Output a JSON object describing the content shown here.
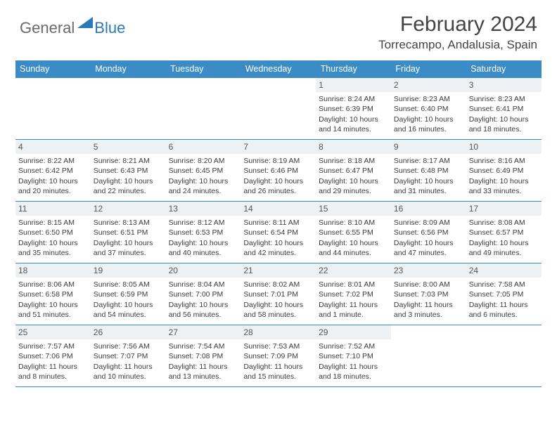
{
  "logo": {
    "general": "General",
    "blue": "Blue",
    "accent_color": "#2a7ab8"
  },
  "header": {
    "month_title": "February 2024",
    "location": "Torrecampo, Andalusia, Spain"
  },
  "calendar": {
    "header_bg": "#3b8bc6",
    "daynum_bg": "#eef1f4",
    "dow": [
      "Sunday",
      "Monday",
      "Tuesday",
      "Wednesday",
      "Thursday",
      "Friday",
      "Saturday"
    ],
    "weeks": [
      [
        null,
        null,
        null,
        null,
        {
          "n": "1",
          "sr": "Sunrise: 8:24 AM",
          "ss": "Sunset: 6:39 PM",
          "d1": "Daylight: 10 hours",
          "d2": "and 14 minutes."
        },
        {
          "n": "2",
          "sr": "Sunrise: 8:23 AM",
          "ss": "Sunset: 6:40 PM",
          "d1": "Daylight: 10 hours",
          "d2": "and 16 minutes."
        },
        {
          "n": "3",
          "sr": "Sunrise: 8:23 AM",
          "ss": "Sunset: 6:41 PM",
          "d1": "Daylight: 10 hours",
          "d2": "and 18 minutes."
        }
      ],
      [
        {
          "n": "4",
          "sr": "Sunrise: 8:22 AM",
          "ss": "Sunset: 6:42 PM",
          "d1": "Daylight: 10 hours",
          "d2": "and 20 minutes."
        },
        {
          "n": "5",
          "sr": "Sunrise: 8:21 AM",
          "ss": "Sunset: 6:43 PM",
          "d1": "Daylight: 10 hours",
          "d2": "and 22 minutes."
        },
        {
          "n": "6",
          "sr": "Sunrise: 8:20 AM",
          "ss": "Sunset: 6:45 PM",
          "d1": "Daylight: 10 hours",
          "d2": "and 24 minutes."
        },
        {
          "n": "7",
          "sr": "Sunrise: 8:19 AM",
          "ss": "Sunset: 6:46 PM",
          "d1": "Daylight: 10 hours",
          "d2": "and 26 minutes."
        },
        {
          "n": "8",
          "sr": "Sunrise: 8:18 AM",
          "ss": "Sunset: 6:47 PM",
          "d1": "Daylight: 10 hours",
          "d2": "and 29 minutes."
        },
        {
          "n": "9",
          "sr": "Sunrise: 8:17 AM",
          "ss": "Sunset: 6:48 PM",
          "d1": "Daylight: 10 hours",
          "d2": "and 31 minutes."
        },
        {
          "n": "10",
          "sr": "Sunrise: 8:16 AM",
          "ss": "Sunset: 6:49 PM",
          "d1": "Daylight: 10 hours",
          "d2": "and 33 minutes."
        }
      ],
      [
        {
          "n": "11",
          "sr": "Sunrise: 8:15 AM",
          "ss": "Sunset: 6:50 PM",
          "d1": "Daylight: 10 hours",
          "d2": "and 35 minutes."
        },
        {
          "n": "12",
          "sr": "Sunrise: 8:13 AM",
          "ss": "Sunset: 6:51 PM",
          "d1": "Daylight: 10 hours",
          "d2": "and 37 minutes."
        },
        {
          "n": "13",
          "sr": "Sunrise: 8:12 AM",
          "ss": "Sunset: 6:53 PM",
          "d1": "Daylight: 10 hours",
          "d2": "and 40 minutes."
        },
        {
          "n": "14",
          "sr": "Sunrise: 8:11 AM",
          "ss": "Sunset: 6:54 PM",
          "d1": "Daylight: 10 hours",
          "d2": "and 42 minutes."
        },
        {
          "n": "15",
          "sr": "Sunrise: 8:10 AM",
          "ss": "Sunset: 6:55 PM",
          "d1": "Daylight: 10 hours",
          "d2": "and 44 minutes."
        },
        {
          "n": "16",
          "sr": "Sunrise: 8:09 AM",
          "ss": "Sunset: 6:56 PM",
          "d1": "Daylight: 10 hours",
          "d2": "and 47 minutes."
        },
        {
          "n": "17",
          "sr": "Sunrise: 8:08 AM",
          "ss": "Sunset: 6:57 PM",
          "d1": "Daylight: 10 hours",
          "d2": "and 49 minutes."
        }
      ],
      [
        {
          "n": "18",
          "sr": "Sunrise: 8:06 AM",
          "ss": "Sunset: 6:58 PM",
          "d1": "Daylight: 10 hours",
          "d2": "and 51 minutes."
        },
        {
          "n": "19",
          "sr": "Sunrise: 8:05 AM",
          "ss": "Sunset: 6:59 PM",
          "d1": "Daylight: 10 hours",
          "d2": "and 54 minutes."
        },
        {
          "n": "20",
          "sr": "Sunrise: 8:04 AM",
          "ss": "Sunset: 7:00 PM",
          "d1": "Daylight: 10 hours",
          "d2": "and 56 minutes."
        },
        {
          "n": "21",
          "sr": "Sunrise: 8:02 AM",
          "ss": "Sunset: 7:01 PM",
          "d1": "Daylight: 10 hours",
          "d2": "and 58 minutes."
        },
        {
          "n": "22",
          "sr": "Sunrise: 8:01 AM",
          "ss": "Sunset: 7:02 PM",
          "d1": "Daylight: 11 hours",
          "d2": "and 1 minute."
        },
        {
          "n": "23",
          "sr": "Sunrise: 8:00 AM",
          "ss": "Sunset: 7:03 PM",
          "d1": "Daylight: 11 hours",
          "d2": "and 3 minutes."
        },
        {
          "n": "24",
          "sr": "Sunrise: 7:58 AM",
          "ss": "Sunset: 7:05 PM",
          "d1": "Daylight: 11 hours",
          "d2": "and 6 minutes."
        }
      ],
      [
        {
          "n": "25",
          "sr": "Sunrise: 7:57 AM",
          "ss": "Sunset: 7:06 PM",
          "d1": "Daylight: 11 hours",
          "d2": "and 8 minutes."
        },
        {
          "n": "26",
          "sr": "Sunrise: 7:56 AM",
          "ss": "Sunset: 7:07 PM",
          "d1": "Daylight: 11 hours",
          "d2": "and 10 minutes."
        },
        {
          "n": "27",
          "sr": "Sunrise: 7:54 AM",
          "ss": "Sunset: 7:08 PM",
          "d1": "Daylight: 11 hours",
          "d2": "and 13 minutes."
        },
        {
          "n": "28",
          "sr": "Sunrise: 7:53 AM",
          "ss": "Sunset: 7:09 PM",
          "d1": "Daylight: 11 hours",
          "d2": "and 15 minutes."
        },
        {
          "n": "29",
          "sr": "Sunrise: 7:52 AM",
          "ss": "Sunset: 7:10 PM",
          "d1": "Daylight: 11 hours",
          "d2": "and 18 minutes."
        },
        null,
        null
      ]
    ]
  }
}
